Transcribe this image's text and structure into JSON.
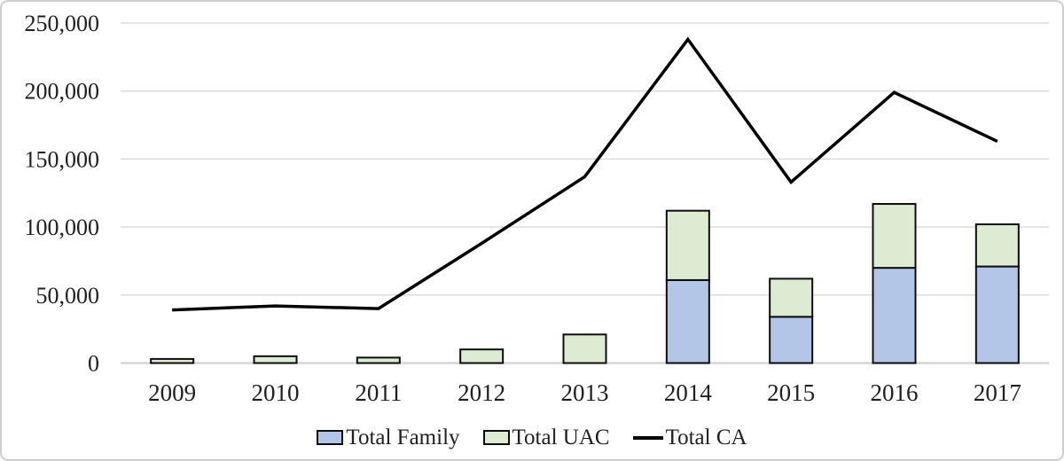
{
  "chart_data": {
    "type": "bar",
    "subtype": "stacked-columns-with-line-overlay",
    "title": "",
    "xlabel": "",
    "ylabel": "",
    "categories": [
      "2009",
      "2010",
      "2011",
      "2012",
      "2013",
      "2014",
      "2015",
      "2016",
      "2017"
    ],
    "series": [
      {
        "name": "Total Family",
        "kind": "bar",
        "color": "#b4c6e7",
        "values": [
          0,
          0,
          0,
          0,
          0,
          61000,
          34000,
          70000,
          71000
        ]
      },
      {
        "name": "Total UAC",
        "kind": "bar",
        "color": "#deebd3",
        "values": [
          3000,
          5000,
          4000,
          10000,
          21000,
          51000,
          28000,
          47000,
          31000
        ]
      },
      {
        "name": "Total CA",
        "kind": "line",
        "color": "#000000",
        "values": [
          39000,
          42000,
          40000,
          88000,
          137000,
          238000,
          133000,
          199000,
          163000
        ]
      }
    ],
    "ylim": [
      0,
      250000
    ],
    "ytick_step": 50000,
    "y_tick_labels": [
      "0",
      "50,000",
      "100,000",
      "150,000",
      "200,000",
      "250,000"
    ],
    "grid": true,
    "legend_position": "bottom"
  },
  "style": {
    "gridline_color": "#dcdcdc",
    "axis_line_color": "#d6d6d6",
    "bar_border_color": "#0d0d0d",
    "text_color": "#1f1f1f",
    "frame_border_color": "#cfcfcf",
    "background": "#ffffff"
  }
}
